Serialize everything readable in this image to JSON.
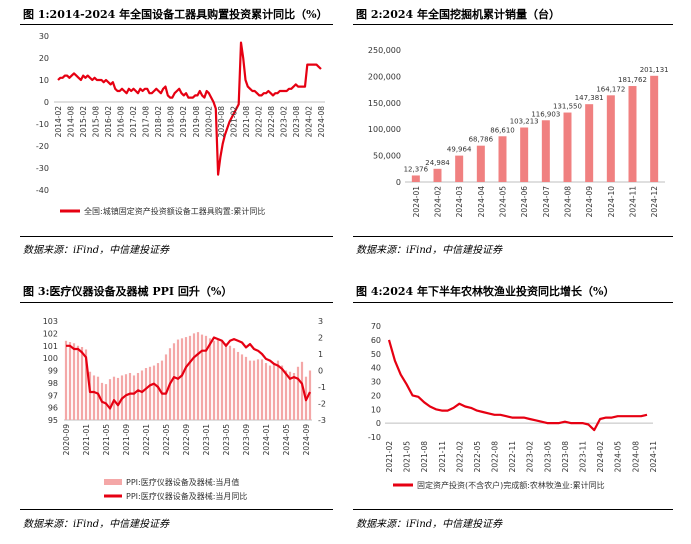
{
  "panels": [
    {
      "title": "图 1:2014-2024 年全国设备工器具购置投资累计同比（%）",
      "source": "数据来源：iFind，中信建投证券"
    },
    {
      "title": "图 2:2024 年全国挖掘机累计销量（台）",
      "source": "数据来源：iFind，中信建投证券"
    },
    {
      "title": "图 3:医疗仪器设备及器械 PPI 回升（%）",
      "source": "数据来源：iFind，中信建投证券"
    },
    {
      "title": "图 4:2024 年下半年农林牧渔业投资同比增长（%）",
      "source": "数据来源：iFind，中信建投证券"
    }
  ],
  "colors": {
    "line": "#e60012",
    "bar": "#f08080",
    "bar_light": "#f4a7a7",
    "grid": "#d9d9d9"
  },
  "chart_data": [
    {
      "type": "line",
      "title": "图 1:2014-2024 年全国设备工器具购置投资累计同比（%）",
      "legend": "全国:城镇固定资产投资额设备工器具购置:累计同比",
      "ylim": [
        -40,
        30
      ],
      "yticks": [
        "30",
        "20",
        "10",
        "0",
        "-10",
        "-20",
        "-30",
        "-40"
      ],
      "xticks": [
        "2014-02",
        "2014-08",
        "2015-02",
        "2015-08",
        "2016-02",
        "2016-08",
        "2017-02",
        "2017-08",
        "2018-02",
        "2018-08",
        "2019-02",
        "2019-08",
        "2020-02",
        "2020-08",
        "2021-02",
        "2021-08",
        "2022-02",
        "2022-08",
        "2023-02",
        "2023-08",
        "2024-02",
        "2024-08"
      ],
      "values": [
        10,
        11,
        11,
        12,
        12,
        11,
        12,
        13,
        12,
        11,
        10,
        12,
        11,
        12,
        11,
        10,
        11,
        10,
        10,
        10,
        9,
        10,
        9,
        8,
        9,
        6,
        5,
        5,
        6,
        5,
        4,
        6,
        5,
        6,
        5,
        4,
        6,
        5,
        6,
        6,
        4,
        4,
        5,
        6,
        5,
        4,
        6,
        7,
        3,
        2,
        2,
        4,
        5,
        6,
        4,
        3,
        4,
        2,
        2,
        2,
        3,
        3,
        5,
        3,
        2,
        5,
        4,
        2,
        0,
        -3,
        -33,
        -25,
        -19,
        -15,
        -12,
        -9,
        -7,
        -5,
        -3,
        -1,
        27,
        20,
        10,
        7,
        6,
        5,
        5,
        4,
        3,
        3,
        4,
        4,
        5,
        4,
        3,
        4,
        4,
        5,
        5,
        5,
        5,
        6,
        6,
        7,
        8,
        7,
        7,
        7,
        7,
        17,
        17,
        17,
        17,
        17,
        16,
        15
      ]
    },
    {
      "type": "bar",
      "title": "图 2:2024 年全国挖掘机累计销量（台）",
      "categories": [
        "2024-01",
        "2024-02",
        "2024-03",
        "2024-04",
        "2024-05",
        "2024-06",
        "2024-07",
        "2024-08",
        "2024-09",
        "2024-10",
        "2024-11",
        "2024-12"
      ],
      "values": [
        12376,
        24984,
        49964,
        68786,
        86610,
        103213,
        116903,
        131550,
        147381,
        164172,
        181762,
        201131
      ],
      "labels": [
        "12,376",
        "24,984",
        "49,964",
        "68,786",
        "86,610",
        "103,213",
        "116,903",
        "131,550",
        "147,381",
        "164,172",
        "181,762",
        "201,131"
      ],
      "ylim": [
        0,
        250000
      ],
      "yticks": [
        "250,000",
        "200,000",
        "150,000",
        "100,000",
        "50,000",
        "0"
      ]
    },
    {
      "type": "bar+line",
      "title": "图 3:医疗仪器设备及器械 PPI 回升（%）",
      "legend_bar": "PPI:医疗仪器设备及器械:当月值",
      "legend_line": "PPI:医疗仪器设备及器械:当月同比",
      "bar_base": 95,
      "ylim_left": [
        95,
        103
      ],
      "ylim_right": [
        -3,
        3
      ],
      "yticks_left": [
        "103",
        "102",
        "101",
        "100",
        "99",
        "98",
        "97",
        "96",
        "95"
      ],
      "yticks_right": [
        "3",
        "2",
        "1",
        "0",
        "-1",
        "-2",
        "-3"
      ],
      "xticks": [
        "2020-09",
        "2021-01",
        "2021-05",
        "2021-09",
        "2022-01",
        "2022-05",
        "2022-09",
        "2023-01",
        "2023-05",
        "2023-09",
        "2024-01",
        "2024-05",
        "2024-09"
      ],
      "bars": [
        101.4,
        101.3,
        101.2,
        101.0,
        100.9,
        100.7,
        98.9,
        98.6,
        98.5,
        98.0,
        97.9,
        98.3,
        98.5,
        98.4,
        98.6,
        98.7,
        98.8,
        98.6,
        98.8,
        99.0,
        99.2,
        99.3,
        99.4,
        99.6,
        99.8,
        100.3,
        100.8,
        101.2,
        101.5,
        101.6,
        101.7,
        101.8,
        102.0,
        102.1,
        101.9,
        101.8,
        101.6,
        101.4,
        101.5,
        101.3,
        101.2,
        101.0,
        100.8,
        100.5,
        100.3,
        100.1,
        99.8,
        99.8,
        99.9,
        99.9,
        99.6,
        99.4,
        99.6,
        99.8,
        99.4,
        99.0,
        98.9,
        98.8,
        99.3,
        99.7,
        98.5,
        99.0
      ],
      "line": [
        1.5,
        1.5,
        1.3,
        1.3,
        1.1,
        0.8,
        -1.3,
        -1.3,
        -1.4,
        -1.9,
        -2.0,
        -2.3,
        -1.8,
        -2.1,
        -1.7,
        -1.5,
        -1.4,
        -1.4,
        -1.2,
        -1.3,
        -1.1,
        -0.9,
        -0.8,
        -1.0,
        -1.4,
        -1.4,
        -0.8,
        -0.4,
        -0.5,
        -0.3,
        0.2,
        0.5,
        0.8,
        1.0,
        1.2,
        1.2,
        1.6,
        2.0,
        1.9,
        1.8,
        1.5,
        1.8,
        1.9,
        1.8,
        1.7,
        1.4,
        1.6,
        1.3,
        1.2,
        1.0,
        0.7,
        0.6,
        0.4,
        0.3,
        0.1,
        -0.2,
        -0.5,
        -0.4,
        -0.5,
        -0.8,
        -1.8,
        -1.3
      ]
    },
    {
      "type": "line",
      "title": "图 4:2024 年下半年农林牧渔业投资同比增长（%）",
      "legend": "固定资产投资(不含农户)完成额:农林牧渔业:累计同比",
      "ylim": [
        -10,
        70
      ],
      "yticks": [
        "70",
        "60",
        "50",
        "40",
        "30",
        "20",
        "10",
        "0",
        "-10"
      ],
      "xticks": [
        "2021-02",
        "2021-05",
        "2021-08",
        "2021-11",
        "2022-02",
        "2022-05",
        "2022-08",
        "2022-11",
        "2023-02",
        "2023-05",
        "2023-08",
        "2023-11",
        "2024-02",
        "2024-05",
        "2024-08",
        "2024-11"
      ],
      "values": [
        60,
        45,
        35,
        28,
        20,
        19,
        15,
        12,
        10,
        9,
        9,
        11,
        14,
        12,
        11,
        9,
        8,
        7,
        6,
        6,
        5,
        4,
        4,
        4,
        3,
        2,
        1,
        0,
        0,
        0,
        1,
        0,
        0,
        0,
        -1,
        -5,
        3,
        4,
        4,
        5,
        5,
        5,
        5,
        5,
        6
      ]
    }
  ]
}
